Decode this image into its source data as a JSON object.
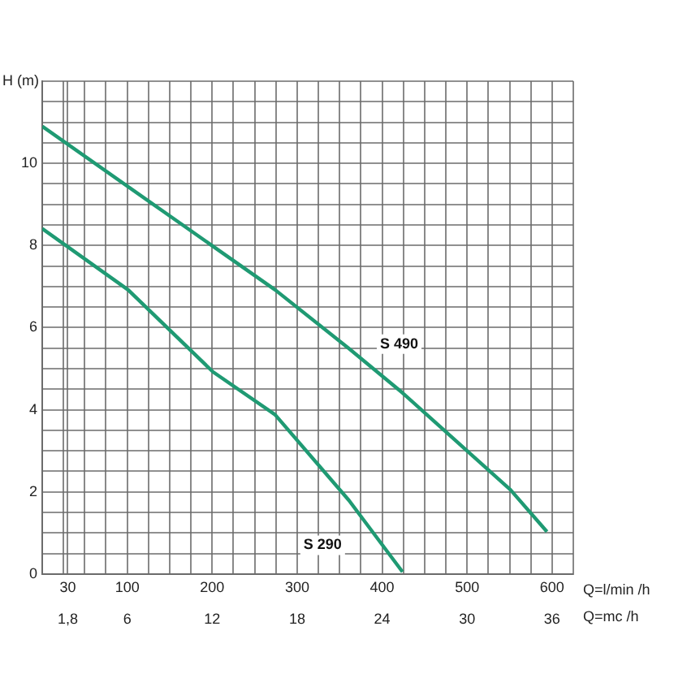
{
  "chart_data": {
    "type": "line",
    "xlabel": "Q=l/min /h",
    "x2label": "Q=mc /h",
    "ylabel": "H (m)",
    "xlim": [
      0,
      625
    ],
    "xticks": [
      {
        "value": 0,
        "label": null
      },
      {
        "value": 25,
        "label": null
      },
      30,
      {
        "value": 50,
        "label": null
      },
      {
        "value": 75,
        "label": null
      },
      100,
      {
        "value": 125,
        "label": null
      },
      {
        "value": 150,
        "label": null
      },
      {
        "value": 175,
        "label": null
      },
      200,
      {
        "value": 225,
        "label": null
      },
      {
        "value": 250,
        "label": null
      },
      {
        "value": 275,
        "label": null
      },
      300,
      {
        "value": 325,
        "label": null
      },
      {
        "value": 350,
        "label": null
      },
      {
        "value": 375,
        "label": null
      },
      400,
      {
        "value": 425,
        "label": null
      },
      {
        "value": 450,
        "label": null
      },
      {
        "value": 475,
        "label": null
      },
      500,
      {
        "value": 525,
        "label": null
      },
      {
        "value": 550,
        "label": null
      },
      {
        "value": 575,
        "label": null
      },
      600,
      {
        "value": 625,
        "label": null
      }
    ],
    "x2lim": [
      0,
      37.5
    ],
    "x2ticks": [
      {
        "value": 1.8,
        "label": "1,8"
      },
      6,
      12,
      18,
      24,
      30,
      36
    ],
    "ylim": [
      0,
      12
    ],
    "yticks": [
      0,
      {
        "value": 0.5,
        "label": null
      },
      {
        "value": 1,
        "label": null
      },
      {
        "value": 1.5,
        "label": null
      },
      2,
      {
        "value": 2.5,
        "label": null
      },
      {
        "value": 3,
        "label": null
      },
      {
        "value": 3.5,
        "label": null
      },
      4,
      {
        "value": 4.5,
        "label": null
      },
      {
        "value": 5,
        "label": null
      },
      {
        "value": 5.5,
        "label": null
      },
      6,
      {
        "value": 6.5,
        "label": null
      },
      {
        "value": 7,
        "label": null
      },
      {
        "value": 7.5,
        "label": null
      },
      8,
      {
        "value": 8.5,
        "label": null
      },
      {
        "value": 9,
        "label": null
      },
      {
        "value": 9.5,
        "label": null
      },
      10,
      {
        "value": 10.5,
        "label": null
      },
      {
        "value": 11,
        "label": null
      },
      {
        "value": 11.5,
        "label": null
      },
      {
        "value": 12,
        "label": null
      }
    ],
    "grid": true,
    "legend": false,
    "marker": "none",
    "line_style": "solid",
    "series": [
      {
        "color": "#1f9a73",
        "x": [
          0,
          141,
          274,
          361,
          424,
          551,
          594
        ],
        "values": [
          10.9,
          8.85,
          6.92,
          5.49,
          4.41,
          2.05,
          1.03
        ]
      },
      {
        "color": "#1f9a73",
        "x": [
          0,
          101,
          201,
          274,
          361,
          424
        ],
        "values": [
          8.41,
          6.92,
          4.92,
          3.88,
          1.79,
          0.05
        ]
      }
    ],
    "annotations": [
      {
        "text": "S 490",
        "x": 420,
        "y": 5.6
      },
      {
        "text": "S 290",
        "x": 330,
        "y": 0.7
      }
    ]
  }
}
